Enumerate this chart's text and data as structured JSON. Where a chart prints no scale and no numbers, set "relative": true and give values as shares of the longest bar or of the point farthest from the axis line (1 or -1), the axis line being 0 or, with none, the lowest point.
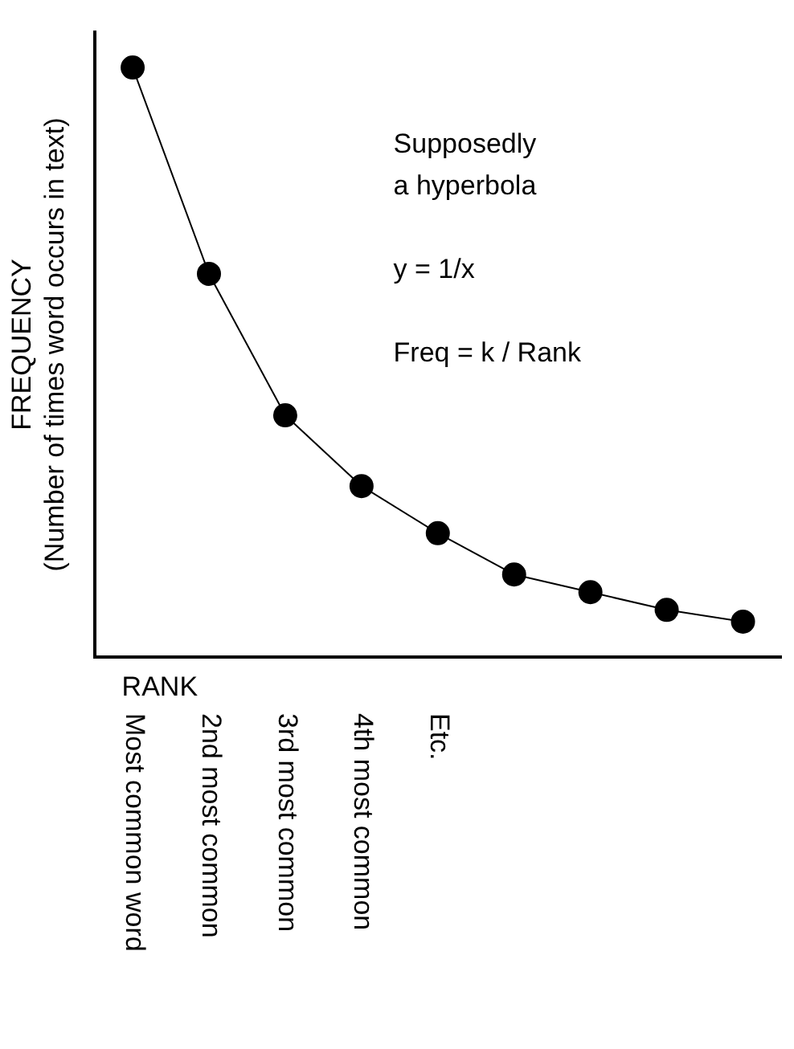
{
  "chart_data": {
    "type": "line",
    "relative": true,
    "xlabel": "RANK",
    "ylabel": "FREQUENCY\n(Number of times word occurs in text)",
    "categories": [
      "Most common word",
      "2nd most common",
      "3rd most common",
      "4th most common",
      "Etc.",
      null,
      null,
      null,
      null
    ],
    "series": [
      {
        "color": "#000000",
        "values": [
          1,
          0.65,
          0.41,
          0.29,
          0.21,
          0.14,
          0.11,
          0.08,
          0.06
        ]
      }
    ],
    "marker": "circle",
    "line_style": "solid",
    "grid": false,
    "legend": false,
    "annotations": [
      "Supposedly\na hyperbola",
      "y = 1/x",
      "Freq = k / Rank"
    ]
  }
}
